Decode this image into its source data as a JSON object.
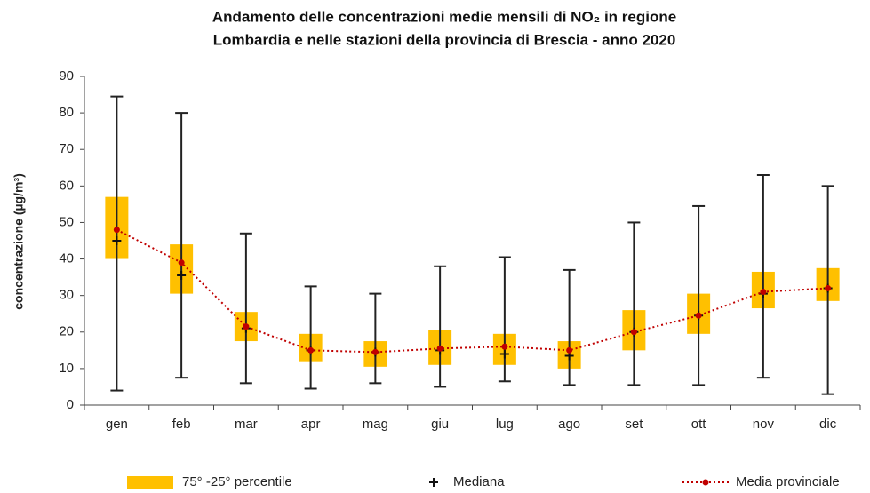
{
  "chart_data": {
    "type": "box",
    "title": [
      "Andamento delle concentrazioni medie mensili di NO₂ in regione",
      "Lombardia e nelle stazioni della provincia di Brescia - anno 2020"
    ],
    "y_label": "concentrazione (µg/m³)",
    "categories": [
      "gen",
      "feb",
      "mar",
      "apr",
      "mag",
      "giu",
      "lug",
      "ago",
      "set",
      "ott",
      "nov",
      "dic"
    ],
    "ylim": [
      0,
      90
    ],
    "yticks": [
      0,
      10,
      20,
      30,
      40,
      50,
      60,
      70,
      80,
      90
    ],
    "grid": false,
    "boxes": {
      "name": "75° -25° percentile",
      "color": "#ffc000",
      "whisker_color": "#222222",
      "min": [
        4,
        7.5,
        6,
        4.5,
        6,
        5,
        6.5,
        5.5,
        5.5,
        5.5,
        7.5,
        3
      ],
      "q1": [
        40,
        30.5,
        17.5,
        12,
        10.5,
        11,
        11,
        10,
        15,
        19.5,
        26.5,
        28.5
      ],
      "q3": [
        57,
        44,
        25.5,
        19.5,
        17.5,
        20.5,
        19.5,
        17.5,
        26,
        30.5,
        36.5,
        37.5
      ],
      "max": [
        84.5,
        80,
        47,
        32.5,
        30.5,
        38,
        40.5,
        37,
        50,
        54.5,
        63,
        60
      ]
    },
    "median": {
      "name": "Mediana",
      "color": "#111111",
      "values": [
        45,
        35.5,
        21,
        15,
        14.5,
        15,
        14,
        13.5,
        20,
        24.5,
        30.5,
        32
      ]
    },
    "mean": {
      "name": "Media provinciale",
      "color": "#c00000",
      "values": [
        48,
        39,
        21.5,
        15,
        14.5,
        15.5,
        16,
        15,
        20,
        24.5,
        31,
        32
      ]
    }
  }
}
